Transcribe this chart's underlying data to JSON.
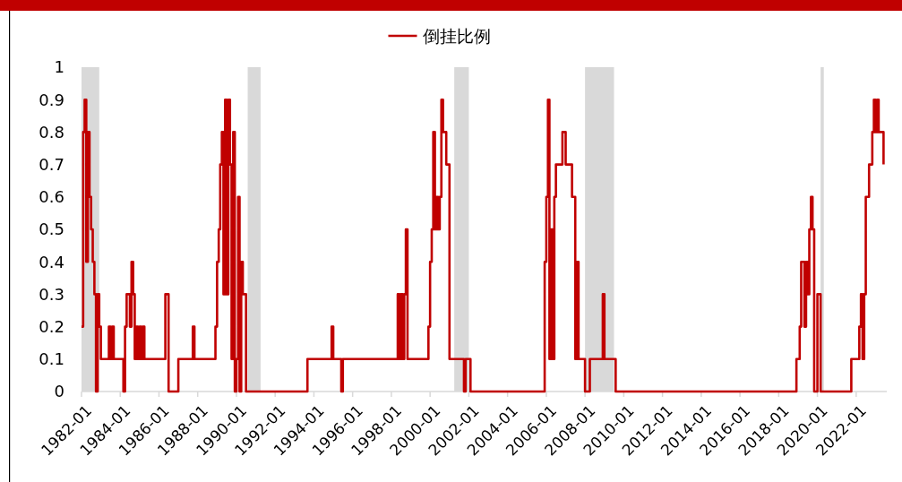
{
  "chart_data": {
    "type": "step",
    "legend": "top",
    "grid": false,
    "line_style": "solid",
    "x": [
      "1982-01",
      "1982-02",
      "1982-03",
      "1982-04",
      "1982-05",
      "1982-06",
      "1982-07",
      "1982-08",
      "1982-09",
      "1982-10",
      "1982-11",
      "1982-12",
      "1983-01",
      "1983-06",
      "1983-07",
      "1983-08",
      "1983-09",
      "1984-03",
      "1984-04",
      "1984-05",
      "1984-07",
      "1984-08",
      "1984-09",
      "1984-10",
      "1984-11",
      "1984-12",
      "1985-01",
      "1985-02",
      "1985-03",
      "1985-04",
      "1986-05",
      "1986-07",
      "1987-01",
      "1987-10",
      "1987-11",
      "1988-12",
      "1989-01",
      "1989-02",
      "1989-03",
      "1989-04",
      "1989-05",
      "1989-06",
      "1989-07",
      "1989-08",
      "1989-09",
      "1989-10",
      "1989-11",
      "1989-12",
      "1990-01",
      "1990-02",
      "1990-03",
      "1990-04",
      "1990-05",
      "1990-07",
      "1993-09",
      "1994-12",
      "1995-01",
      "1995-06",
      "1995-07",
      "1998-05",
      "1998-06",
      "1998-07",
      "1998-08",
      "1998-09",
      "1998-10",
      "1998-11",
      "1999-12",
      "2000-01",
      "2000-02",
      "2000-03",
      "2000-04",
      "2000-05",
      "2000-06",
      "2000-07",
      "2000-08",
      "2000-09",
      "2000-11",
      "2001-01",
      "2001-10",
      "2001-11",
      "2002-02",
      "2005-12",
      "2006-01",
      "2006-02",
      "2006-03",
      "2006-04",
      "2006-05",
      "2006-06",
      "2006-07",
      "2006-11",
      "2007-01",
      "2007-05",
      "2007-07",
      "2007-08",
      "2007-09",
      "2008-01",
      "2008-04",
      "2008-12",
      "2009-01",
      "2009-08",
      "2018-12",
      "2019-02",
      "2019-03",
      "2019-05",
      "2019-06",
      "2019-07",
      "2019-08",
      "2019-09",
      "2019-10",
      "2019-11",
      "2020-01",
      "2020-03",
      "2021-10",
      "2022-03",
      "2022-04",
      "2022-05",
      "2022-06",
      "2022-07",
      "2022-09",
      "2022-11",
      "2022-12",
      "2023-01",
      "2023-02",
      "2023-03",
      "2023-06"
    ],
    "series": [
      {
        "name": "倒挂比例",
        "color": "#c00000",
        "values": [
          0.2,
          0.8,
          0.9,
          0.4,
          0.8,
          0.6,
          0.5,
          0.4,
          0.3,
          0,
          0.3,
          0.2,
          0.1,
          0.2,
          0.1,
          0.2,
          0.1,
          0,
          0.2,
          0.3,
          0.2,
          0.4,
          0.3,
          0.1,
          0.2,
          0.1,
          0.2,
          0.1,
          0.2,
          0.1,
          0.3,
          0,
          0.1,
          0.2,
          0.1,
          0.2,
          0.4,
          0.5,
          0.7,
          0.8,
          0.3,
          0.9,
          0.3,
          0.9,
          0.7,
          0.1,
          0.8,
          0,
          0.1,
          0.6,
          0,
          0.4,
          0.3,
          0,
          0.1,
          0.2,
          0.1,
          0,
          0.1,
          0.3,
          0.1,
          0.3,
          0.1,
          0.3,
          0.5,
          0.1,
          0.2,
          0.4,
          0.5,
          0.8,
          0.5,
          0.6,
          0.5,
          0.6,
          0.9,
          0.8,
          0.7,
          0.1,
          0,
          0.1,
          0,
          0.4,
          0.6,
          0.9,
          0.1,
          0.5,
          0.1,
          0.6,
          0.7,
          0.8,
          0.7,
          0.6,
          0.1,
          0.4,
          0.1,
          0,
          0.1,
          0.3,
          0.1,
          0,
          0.1,
          0.2,
          0.4,
          0.2,
          0.4,
          0.3,
          0.5,
          0.6,
          0.5,
          0,
          0.3,
          0,
          0.1,
          0.2,
          0.3,
          0.1,
          0.3,
          0.6,
          0.7,
          0.8,
          0.9,
          0.8,
          0.9,
          0.8,
          0.7
        ]
      }
    ],
    "bands": [
      {
        "axis": "x",
        "from": "1982-01",
        "to": "1982-12",
        "color": "#d9d9d9"
      },
      {
        "axis": "x",
        "from": "1990-08",
        "to": "1991-04",
        "color": "#d9d9d9"
      },
      {
        "axis": "x",
        "from": "2001-04",
        "to": "2002-01",
        "color": "#d9d9d9"
      },
      {
        "axis": "x",
        "from": "2008-01",
        "to": "2009-07",
        "color": "#d9d9d9"
      },
      {
        "axis": "x",
        "from": "2020-03",
        "to": "2020-05",
        "color": "#d9d9d9"
      }
    ],
    "xlim": [
      "1982-01",
      "2023-08"
    ],
    "xticks": [
      "1982-01",
      "1984-01",
      "1986-01",
      "1988-01",
      "1990-01",
      "1992-01",
      "1994-01",
      "1996-01",
      "1998-01",
      "2000-01",
      "2002-01",
      "2004-01",
      "2006-01",
      "2008-01",
      "2010-01",
      "2012-01",
      "2014-01",
      "2016-01",
      "2018-01",
      "2020-01",
      "2022-01"
    ],
    "ylim": [
      0,
      1
    ],
    "yticks": [
      0,
      0.1,
      0.2,
      0.3,
      0.4,
      0.5,
      0.6,
      0.7,
      0.8,
      0.9,
      1
    ]
  }
}
